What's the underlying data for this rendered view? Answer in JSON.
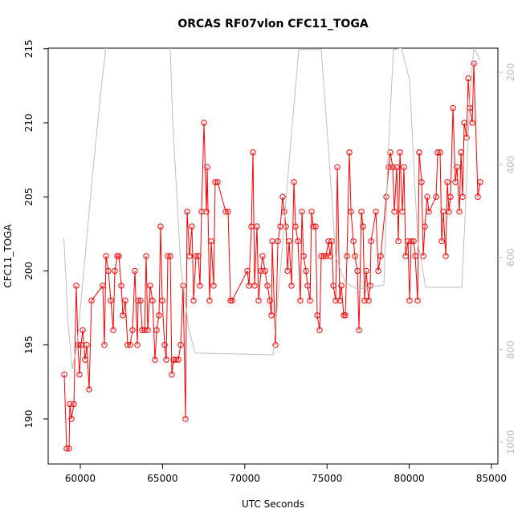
{
  "chart_data": {
    "type": "line",
    "title": "ORCAS RF07vlon CFC11_TOGA",
    "x_label": "UTC Seconds",
    "y_label": "CFC11_TOGA",
    "xlim": [
      58047,
      85391
    ],
    "ylim": [
      186.96,
      215.04
    ],
    "y2lim": [
      1047,
      148
    ],
    "xticks": [
      60000,
      65000,
      70000,
      75000,
      80000,
      85000
    ],
    "yticks": [
      190,
      195,
      200,
      205,
      210,
      215
    ],
    "y2ticks": [
      200,
      400,
      600,
      800,
      1000
    ],
    "series": [
      {
        "color": "#ff0000",
        "marker": "circle",
        "x": [
          59024,
          59170,
          59317,
          59366,
          59463,
          59610,
          59756,
          59854,
          59952,
          60049,
          60147,
          60293,
          60391,
          60537,
          60684,
          61367,
          61465,
          61563,
          61709,
          61856,
          62002,
          62100,
          62246,
          62344,
          62490,
          62588,
          62735,
          62881,
          63028,
          63174,
          63321,
          63467,
          63516,
          63662,
          63760,
          63907,
          64004,
          64102,
          64248,
          64395,
          64541,
          64639,
          64785,
          64883,
          64981,
          65127,
          65225,
          65323,
          65469,
          65567,
          65665,
          65811,
          65958,
          66104,
          66251,
          66397,
          66495,
          66641,
          66788,
          66885,
          67032,
          67178,
          67276,
          67374,
          67520,
          67667,
          67716,
          67862,
          67960,
          68106,
          68204,
          68350,
          68839,
          68985,
          69132,
          69230,
          70157,
          70255,
          70402,
          70499,
          70597,
          70743,
          70841,
          70987,
          71085,
          71232,
          71378,
          71525,
          71622,
          71671,
          71867,
          72013,
          72160,
          72306,
          72404,
          72502,
          72599,
          72697,
          72843,
          72990,
          73088,
          73234,
          73381,
          73478,
          73576,
          73723,
          73820,
          73967,
          74064,
          74162,
          74309,
          74406,
          74553,
          74650,
          74797,
          74943,
          75090,
          75187,
          75285,
          75383,
          75529,
          75627,
          75774,
          75871,
          76018,
          76115,
          76213,
          76360,
          76457,
          76604,
          76701,
          76848,
          76945,
          77092,
          77190,
          77287,
          77385,
          77531,
          77629,
          77678,
          77971,
          78118,
          78264,
          78606,
          78752,
          78850,
          78996,
          79094,
          79240,
          79338,
          79436,
          79582,
          79680,
          79778,
          79924,
          80022,
          80119,
          80266,
          80364,
          80510,
          80608,
          80754,
          80852,
          80950,
          81096,
          81194,
          81633,
          81731,
          81877,
          81975,
          82073,
          82219,
          82317,
          82414,
          82512,
          82659,
          82805,
          82903,
          83049,
          83147,
          83245,
          83342,
          83489,
          83587,
          83684,
          83831,
          83928,
          84172,
          84319
        ],
        "values": [
          193,
          188,
          188,
          191,
          190,
          191,
          199,
          195,
          193,
          195,
          196,
          194,
          195,
          192,
          198,
          199,
          195,
          201,
          200,
          198,
          196,
          200,
          201,
          201,
          199,
          197,
          198,
          195,
          195,
          196,
          200,
          195,
          198,
          198,
          196,
          196,
          201,
          196,
          199,
          198,
          194,
          196,
          197,
          203,
          198,
          195,
          194,
          201,
          201,
          193,
          194,
          194,
          194,
          195,
          199,
          190,
          204,
          201,
          203,
          198,
          201,
          201,
          199,
          204,
          210,
          204,
          207,
          198,
          202,
          199,
          206,
          206,
          204,
          204,
          198,
          198,
          200,
          199,
          203,
          208,
          199,
          203,
          198,
          200,
          201,
          200,
          199,
          198,
          197,
          202,
          195,
          202,
          203,
          205,
          204,
          203,
          200,
          202,
          199,
          206,
          203,
          202,
          198,
          204,
          201,
          200,
          199,
          198,
          204,
          203,
          203,
          197,
          196,
          201,
          201,
          201,
          202,
          201,
          202,
          199,
          198,
          207,
          198,
          199,
          197,
          197,
          201,
          208,
          204,
          202,
          201,
          200,
          196,
          204,
          203,
          198,
          200,
          198,
          199,
          202,
          204,
          200,
          201,
          205,
          207,
          208,
          207,
          204,
          207,
          202,
          208,
          204,
          207,
          201,
          202,
          198,
          202,
          202,
          201,
          198,
          208,
          206,
          201,
          203,
          205,
          204,
          205,
          208,
          208,
          202,
          204,
          201,
          206,
          204,
          205,
          211,
          206,
          207,
          204,
          208,
          205,
          210,
          209,
          213,
          211,
          210,
          214,
          205,
          206
        ]
      },
      {
        "color": "#bebebe",
        "axis": "y2",
        "x": [
          59000,
          59250,
          59512,
          59805,
          60244,
          60732,
          61220,
          61709,
          62344,
          65323,
          65616,
          66104,
          66592,
          66983,
          71720,
          72200,
          72700,
          73283,
          74650,
          75140,
          75530,
          76115,
          76850,
          78460,
          78700,
          79040,
          79530,
          80020,
          80510,
          81000,
          83197,
          83440,
          83684,
          83928,
          84319
        ],
        "values": [
          559,
          738,
          842,
          790,
          617,
          426,
          252,
          96,
          0,
          0,
          304,
          617,
          755,
          807,
          811,
          617,
          391,
          151,
          151,
          391,
          599,
          655,
          669,
          660,
          391,
          151,
          148,
          217,
          564,
          665,
          665,
          478,
          252,
          148,
          174
        ]
      }
    ]
  }
}
